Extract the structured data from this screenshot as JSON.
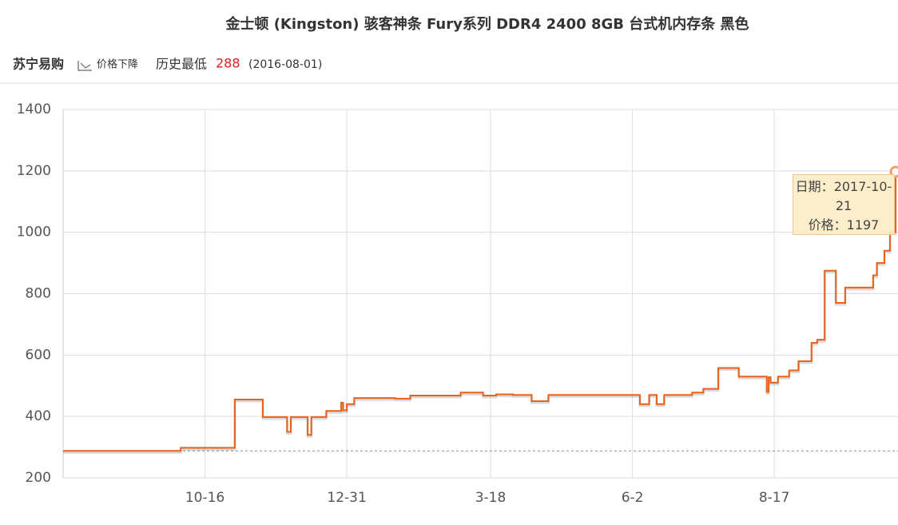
{
  "header": {
    "store": "苏宁易购",
    "trend": "价格下降",
    "lowest_label": "历史最低",
    "lowest_date": "(2016-08-01)"
  },
  "chart_data": {
    "type": "line",
    "title": "金士顿 (Kingston) 骇客神条 Fury系列 DDR4 2400 8GB 台式机内存条 黑色",
    "line_shape": "step",
    "lowest": 288,
    "x": [
      "2016-08-01",
      "2016-10-03",
      "2016-11-01",
      "2016-11-16",
      "2016-11-29",
      "2016-12-01",
      "2016-12-10",
      "2016-12-12",
      "2016-12-20",
      "2016-12-28",
      "2016-12-29",
      "2016-12-31",
      "2017-01-04",
      "2017-01-26",
      "2017-02-03",
      "2017-03-02",
      "2017-03-14",
      "2017-03-21",
      "2017-03-30",
      "2017-04-09",
      "2017-04-18",
      "2017-06-06",
      "2017-06-11",
      "2017-06-15",
      "2017-06-19",
      "2017-07-04",
      "2017-07-10",
      "2017-07-18",
      "2017-07-29",
      "2017-08-13",
      "2017-08-14",
      "2017-08-15",
      "2017-08-19",
      "2017-08-25",
      "2017-08-30",
      "2017-09-06",
      "2017-09-09",
      "2017-09-13",
      "2017-09-19",
      "2017-09-24",
      "2017-10-09",
      "2017-10-11",
      "2017-10-15",
      "2017-10-18",
      "2017-10-21"
    ],
    "series": [
      {
        "name": "价格",
        "color": "#e8621a",
        "values": [
          288,
          298,
          455,
          398,
          350,
          398,
          340,
          398,
          418,
          445,
          420,
          440,
          460,
          458,
          468,
          478,
          468,
          472,
          470,
          450,
          470,
          440,
          470,
          440,
          470,
          478,
          490,
          558,
          530,
          480,
          528,
          510,
          530,
          550,
          580,
          640,
          650,
          875,
          770,
          820,
          860,
          900,
          940,
          1000,
          1197
        ]
      }
    ],
    "xlim": [
      "2016-08-01",
      "2017-10-21"
    ],
    "xticks": [
      {
        "value": "2016-10-16",
        "label": "10-16"
      },
      {
        "value": "2016-12-31",
        "label": "12-31"
      },
      {
        "value": "2017-03-18",
        "label": "3-18"
      },
      {
        "value": "2017-06-02",
        "label": "6-2"
      },
      {
        "value": "2017-08-17",
        "label": "8-17"
      }
    ],
    "ylim": [
      200,
      1400
    ],
    "yticks": [
      200,
      400,
      600,
      800,
      1000,
      1200,
      1400
    ],
    "grid": true,
    "tooltip": {
      "date_label": "日期：",
      "price_label": "价格："
    }
  }
}
